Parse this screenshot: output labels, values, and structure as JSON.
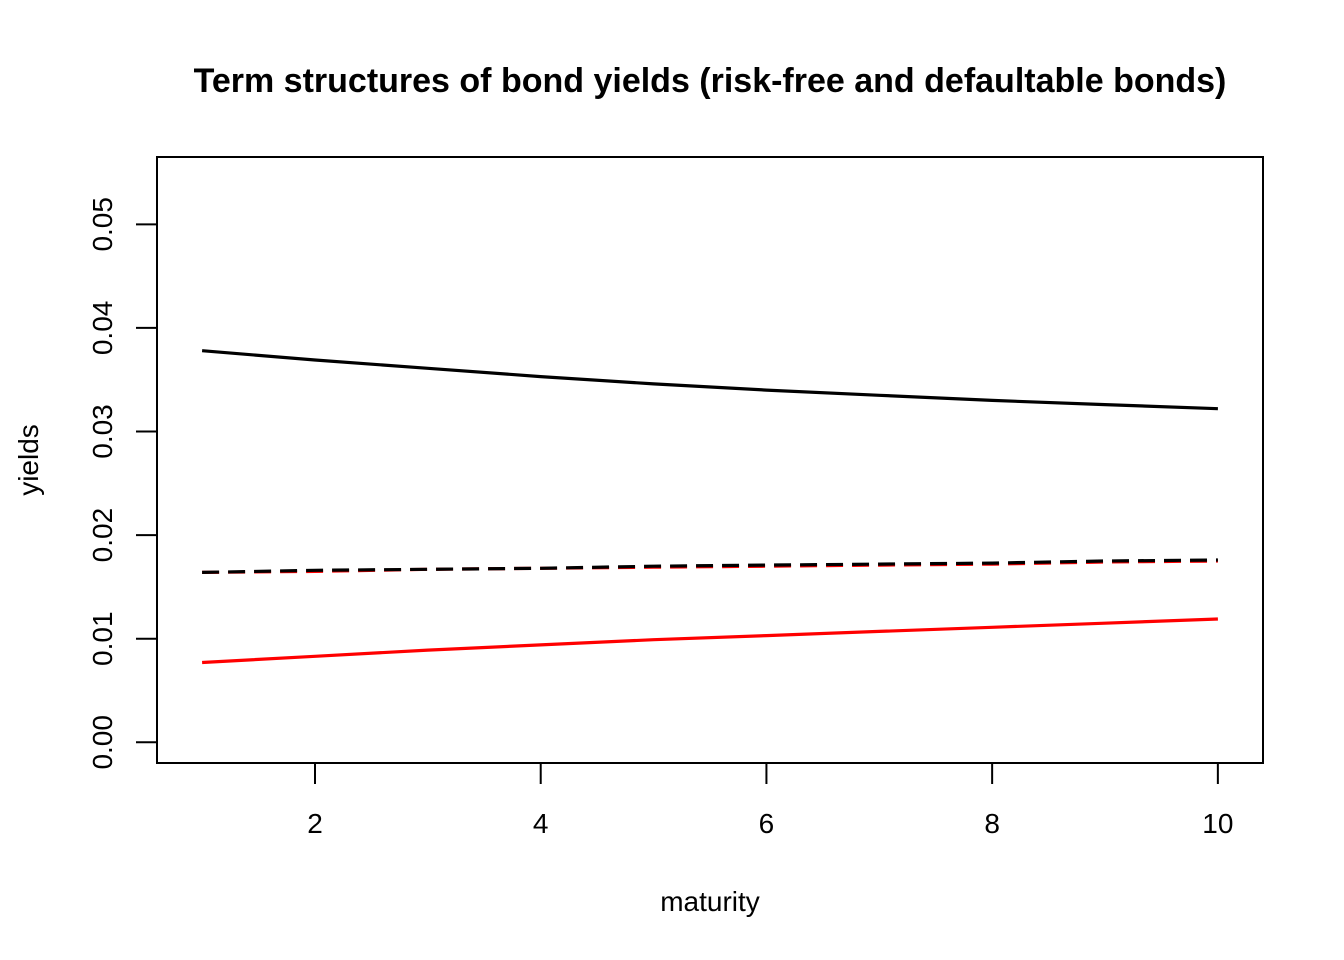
{
  "chart_data": {
    "type": "line",
    "title": "Term structures of bond yields (risk-free and defaultable bonds)",
    "xlabel": "maturity",
    "ylabel": "yields",
    "xlim": [
      0.6,
      10.4
    ],
    "ylim": [
      -0.002,
      0.0565
    ],
    "xticks": [
      2,
      4,
      6,
      8,
      10
    ],
    "xtick_labels": [
      "2",
      "4",
      "6",
      "8",
      "10"
    ],
    "yticks": [
      0.0,
      0.01,
      0.02,
      0.03,
      0.04,
      0.05
    ],
    "ytick_labels": [
      "0.00",
      "0.01",
      "0.02",
      "0.03",
      "0.04",
      "0.05"
    ],
    "grid": false,
    "legend": "none",
    "series": [
      {
        "color": "#000000",
        "dash": "solid",
        "x": [
          1,
          2,
          3,
          4,
          5,
          6,
          7,
          8,
          9,
          10
        ],
        "y": [
          0.0378,
          0.0369,
          0.0361,
          0.0353,
          0.0346,
          0.034,
          0.0335,
          0.033,
          0.0326,
          0.0322
        ]
      },
      {
        "color": "#ff0000",
        "dash": "solid",
        "x": [
          1,
          2,
          3,
          4,
          5,
          6,
          7,
          8,
          9,
          10
        ],
        "y": [
          0.0077,
          0.0083,
          0.0089,
          0.0094,
          0.0099,
          0.0103,
          0.0107,
          0.0111,
          0.0115,
          0.0119
        ]
      },
      {
        "color": "#ff0000",
        "dash": "dashed",
        "x": [
          1,
          2,
          3,
          4,
          5,
          6,
          7,
          8,
          9,
          10
        ],
        "y": [
          0.0164,
          0.0165,
          0.0167,
          0.0168,
          0.0169,
          0.017,
          0.0171,
          0.0172,
          0.0174,
          0.0175
        ]
      },
      {
        "color": "#000000",
        "dash": "dashed",
        "x": [
          1,
          2,
          3,
          4,
          5,
          6,
          7,
          8,
          9,
          10
        ],
        "y": [
          0.0164,
          0.0166,
          0.0167,
          0.0168,
          0.017,
          0.0171,
          0.0172,
          0.0173,
          0.0175,
          0.0176
        ]
      }
    ]
  }
}
